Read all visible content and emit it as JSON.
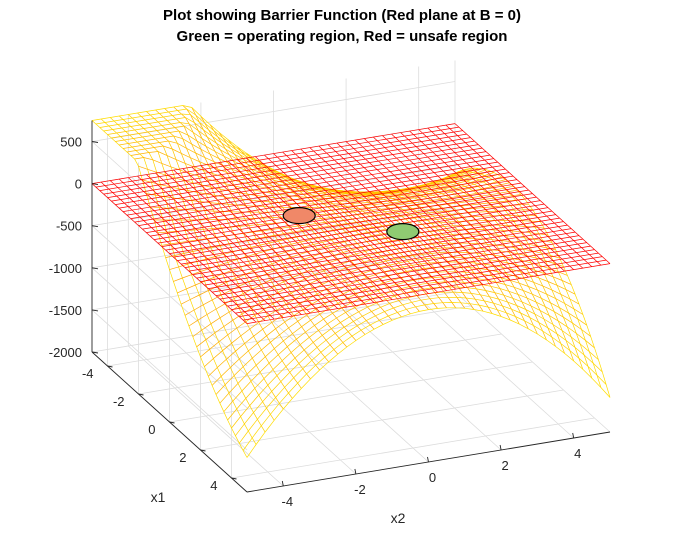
{
  "chart_data": {
    "type": "surface",
    "title": [
      "Plot showing Barrier Function (Red plane at B = 0)",
      "Green = operating region, Red = unsafe region"
    ],
    "xlabel": "x1",
    "ylabel": "x2",
    "zlabel": "",
    "x1_ticks": [
      "-4",
      "-2",
      "0",
      "2",
      "4"
    ],
    "x2_ticks": [
      "-4",
      "-2",
      "0",
      "2",
      "4"
    ],
    "z_ticks": [
      "500",
      "0",
      "-500",
      "-1000",
      "-1500",
      "-2000"
    ],
    "x1_range": [
      -5,
      5
    ],
    "x2_range": [
      -5,
      5
    ],
    "z_range": [
      -2000,
      750
    ],
    "grid": true,
    "series": [
      {
        "role": "barrier surface",
        "colormap": "jet",
        "style": "mesh"
      },
      {
        "role": "zero plane",
        "z": 0,
        "color": "#ff0000",
        "style": "mesh"
      }
    ],
    "markers": [
      {
        "x1": -1.0,
        "x2": -1.0,
        "fill": "#f08868"
      },
      {
        "x1": 1.0,
        "x2": 1.0,
        "fill": "#8fcb72"
      }
    ],
    "colors": {
      "unsafe": "#ff0000",
      "operating": "#00b400"
    }
  }
}
